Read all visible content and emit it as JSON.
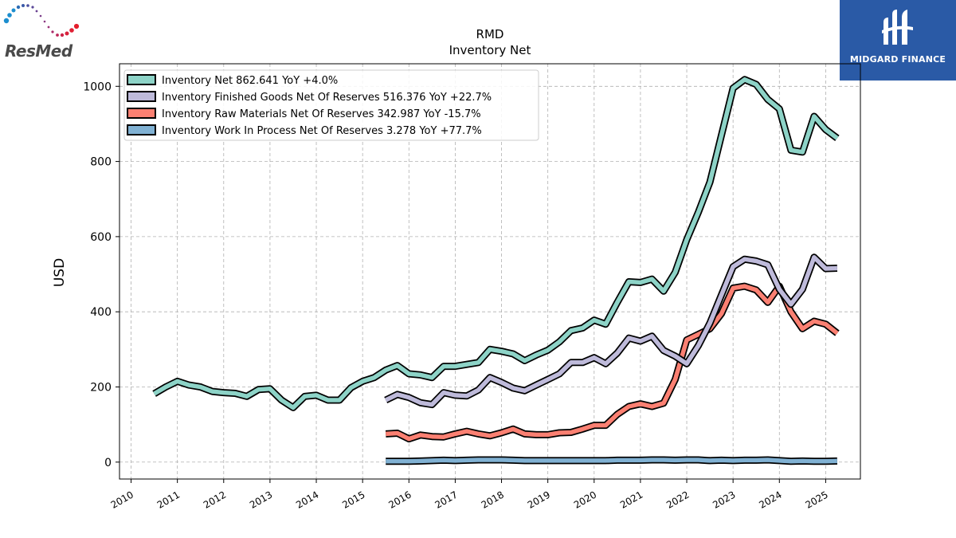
{
  "brands": {
    "left_logo": "ResMed",
    "right_logo": "MIDGARD FINANCE"
  },
  "colors": {
    "inventory_net": "#8dd3c7",
    "finished_goods": "#bebada",
    "raw_materials": "#fb8072",
    "work_in_process": "#80b1d3",
    "midgard_blue": "#2a5aa6"
  },
  "chart_data": {
    "type": "line",
    "title": "RMD",
    "subtitle": "Inventory Net",
    "xlabel": "",
    "ylabel": "USD",
    "xlim": [
      2009.75,
      2025.75
    ],
    "ylim": [
      -45,
      1060
    ],
    "y_ticks": [
      0,
      200,
      400,
      600,
      800,
      1000
    ],
    "x_ticks": [
      2010,
      2011,
      2012,
      2013,
      2014,
      2015,
      2016,
      2017,
      2018,
      2019,
      2020,
      2021,
      2022,
      2023,
      2024,
      2025
    ],
    "grid": true,
    "legend_position": "top-left",
    "series": [
      {
        "name": "Inventory Net",
        "legend": "Inventory Net  862.641 YoY +4.0%",
        "x": [
          2010.5,
          2010.75,
          2011.0,
          2011.25,
          2011.5,
          2011.75,
          2012.0,
          2012.25,
          2012.5,
          2012.75,
          2013.0,
          2013.25,
          2013.5,
          2013.75,
          2014.0,
          2014.25,
          2014.5,
          2014.75,
          2015.0,
          2015.25,
          2015.5,
          2015.75,
          2016.0,
          2016.25,
          2016.5,
          2016.75,
          2017.0,
          2017.25,
          2017.5,
          2017.75,
          2018.0,
          2018.25,
          2018.5,
          2018.75,
          2019.0,
          2019.25,
          2019.5,
          2019.75,
          2020.0,
          2020.25,
          2020.5,
          2020.75,
          2021.0,
          2021.25,
          2021.5,
          2021.75,
          2022.0,
          2022.25,
          2022.5,
          2022.75,
          2023.0,
          2023.25,
          2023.5,
          2023.75,
          2024.0,
          2024.25,
          2024.5,
          2024.75,
          2025.0,
          2025.25
        ],
        "values": [
          182,
          200,
          215,
          205,
          200,
          188,
          185,
          183,
          175,
          193,
          195,
          165,
          145,
          175,
          178,
          165,
          165,
          198,
          215,
          225,
          245,
          257,
          235,
          232,
          225,
          255,
          255,
          260,
          265,
          300,
          295,
          288,
          270,
          285,
          298,
          320,
          350,
          357,
          378,
          367,
          425,
          480,
          478,
          487,
          455,
          505,
          592,
          665,
          745,
          870,
          995,
          1018,
          1005,
          965,
          940,
          830,
          825,
          920,
          885,
          862
        ]
      },
      {
        "name": "Inventory Finished Goods Net Of Reserves",
        "legend": "Inventory Finished Goods Net Of Reserves  516.376 YoY +22.7%",
        "x": [
          2015.5,
          2015.75,
          2016.0,
          2016.25,
          2016.5,
          2016.75,
          2017.0,
          2017.25,
          2017.5,
          2017.75,
          2018.0,
          2018.25,
          2018.5,
          2018.75,
          2019.0,
          2019.25,
          2019.5,
          2019.75,
          2020.0,
          2020.25,
          2020.5,
          2020.75,
          2021.0,
          2021.25,
          2021.5,
          2021.75,
          2022.0,
          2022.25,
          2022.5,
          2022.75,
          2023.0,
          2023.25,
          2023.5,
          2023.75,
          2024.0,
          2024.25,
          2024.5,
          2024.75,
          2025.0,
          2025.25
        ],
        "values": [
          165,
          180,
          172,
          158,
          153,
          185,
          178,
          176,
          192,
          225,
          212,
          197,
          190,
          205,
          220,
          235,
          265,
          265,
          278,
          262,
          290,
          330,
          322,
          335,
          297,
          282,
          262,
          310,
          370,
          445,
          520,
          540,
          535,
          525,
          460,
          420,
          460,
          545,
          515,
          516
        ]
      },
      {
        "name": "Inventory Raw Materials Net Of Reserves",
        "legend": "Inventory Raw Materials Net Of Reserves  342.987 YoY -15.7%",
        "x": [
          2015.5,
          2015.75,
          2016.0,
          2016.25,
          2016.5,
          2016.75,
          2017.0,
          2017.25,
          2017.5,
          2017.75,
          2018.0,
          2018.25,
          2018.5,
          2018.75,
          2019.0,
          2019.25,
          2019.5,
          2019.75,
          2020.0,
          2020.25,
          2020.5,
          2020.75,
          2021.0,
          2021.25,
          2021.5,
          2021.75,
          2022.0,
          2022.25,
          2022.5,
          2022.75,
          2023.0,
          2023.25,
          2023.5,
          2023.75,
          2024.0,
          2024.25,
          2024.5,
          2024.75,
          2025.0,
          2025.25
        ],
        "values": [
          75,
          77,
          62,
          72,
          68,
          67,
          75,
          82,
          75,
          70,
          78,
          88,
          75,
          73,
          73,
          78,
          79,
          88,
          98,
          98,
          127,
          148,
          155,
          148,
          157,
          220,
          325,
          340,
          355,
          395,
          463,
          468,
          458,
          425,
          468,
          400,
          355,
          375,
          367,
          343
        ]
      },
      {
        "name": "Inventory Work In Process Net Of Reserves",
        "legend": "Inventory Work In Process Net Of Reserves  3.278 YoY +77.7%",
        "x": [
          2015.5,
          2015.75,
          2016.0,
          2016.25,
          2016.5,
          2016.75,
          2017.0,
          2017.25,
          2017.5,
          2017.75,
          2018.0,
          2018.25,
          2018.5,
          2018.75,
          2019.0,
          2019.25,
          2019.5,
          2019.75,
          2020.0,
          2020.25,
          2020.5,
          2020.75,
          2021.0,
          2021.25,
          2021.5,
          2021.75,
          2022.0,
          2022.25,
          2022.5,
          2022.75,
          2023.0,
          2023.25,
          2023.5,
          2023.75,
          2024.0,
          2024.25,
          2024.5,
          2024.75,
          2025.0,
          2025.25
        ],
        "values": [
          2,
          2,
          2,
          3,
          4,
          5,
          4,
          5,
          6,
          6,
          6,
          5,
          4,
          4,
          4,
          4,
          4,
          4,
          4,
          4,
          5,
          5,
          5,
          6,
          6,
          5,
          6,
          6,
          4,
          5,
          4,
          5,
          5,
          6,
          4,
          2,
          3,
          2,
          2,
          3
        ]
      }
    ]
  }
}
